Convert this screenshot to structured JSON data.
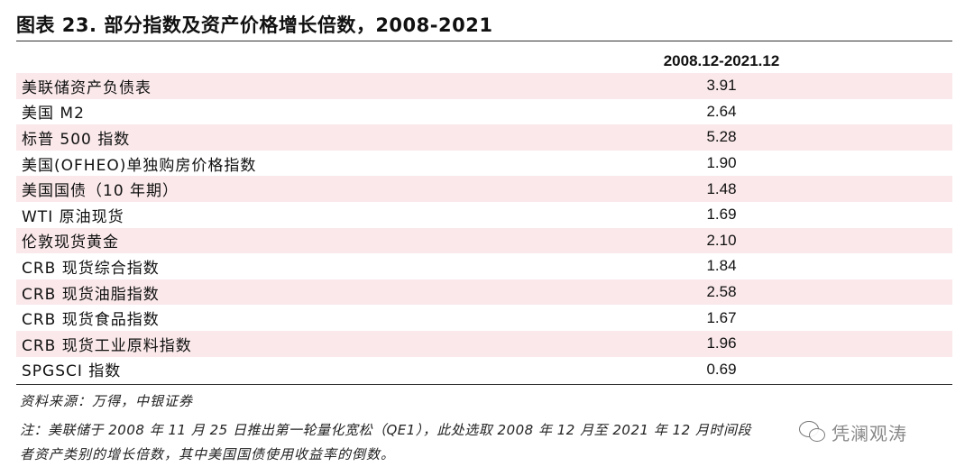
{
  "title": "图表 23. 部分指数及资产价格增长倍数，2008-2021",
  "column_header": "2008.12-2021.12",
  "rows": [
    {
      "label": "美联储资产负债表",
      "value": "3.91"
    },
    {
      "label": "美国 M2",
      "value": "2.64"
    },
    {
      "label": "标普 500 指数",
      "value": "5.28"
    },
    {
      "label": "美国(OFHEO)单独购房价格指数",
      "value": "1.90"
    },
    {
      "label": "美国国债（10 年期）",
      "value": "1.48"
    },
    {
      "label": "WTI 原油现货",
      "value": "1.69"
    },
    {
      "label": "伦敦现货黄金",
      "value": "2.10"
    },
    {
      "label": "CRB 现货综合指数",
      "value": "1.84"
    },
    {
      "label": "CRB 现货油脂指数",
      "value": "2.58"
    },
    {
      "label": "CRB 现货食品指数",
      "value": "1.67"
    },
    {
      "label": "CRB 现货工业原料指数",
      "value": "1.96"
    },
    {
      "label": "SPGSCI 指数",
      "value": "0.69"
    }
  ],
  "source": "资料来源：万得，中银证券",
  "note_line1": "注：美联储于 2008 年 11 月 25 日推出第一轮量化宽松（QE1），此处选取 2008 年 12 月至 2021 年 12 月时间段",
  "note_line2": "者资产类别的增长倍数，其中美国国债使用收益率的倒数。",
  "watermark": "凭澜观涛",
  "colors": {
    "shade_row": "#fae8ea",
    "rule": "#333333"
  }
}
